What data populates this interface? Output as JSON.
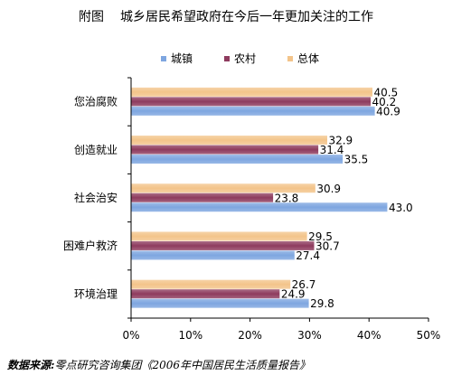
{
  "chart_data": {
    "type": "bar",
    "orientation": "horizontal",
    "title_prefix": "附图",
    "title": "城乡居民希望政府在今后一年更加关注的工作",
    "categories": [
      "您治腐败",
      "创造就业",
      "社会治安",
      "困难户救济",
      "环境治理"
    ],
    "series": [
      {
        "name": "城镇",
        "color": "#7EA6E0",
        "values": [
          40.9,
          35.5,
          43.0,
          27.4,
          29.8
        ]
      },
      {
        "name": "农村",
        "color": "#8E3B5E",
        "values": [
          40.2,
          31.4,
          23.8,
          30.7,
          24.9
        ]
      },
      {
        "name": "总体",
        "color": "#F3C48A",
        "values": [
          40.5,
          32.9,
          30.9,
          29.5,
          26.7
        ]
      }
    ],
    "data_labels": [
      [
        "40.5",
        "40.2",
        "40.9"
      ],
      [
        "32.9",
        "31.4",
        "35.5"
      ],
      [
        "30.9",
        "23.8",
        "43.0"
      ],
      [
        "29.5",
        "30.7",
        "27.4"
      ],
      [
        "26.7",
        "24.9",
        "29.8"
      ]
    ],
    "x_ticks": [
      "0%",
      "10%",
      "20%",
      "30%",
      "40%",
      "50%"
    ],
    "xlim": [
      0,
      50
    ],
    "legend": "top",
    "grid": false
  },
  "source": {
    "label": "数据来源:",
    "text": "零点研究咨询集团《2006年中国居民生活质量报告》"
  }
}
